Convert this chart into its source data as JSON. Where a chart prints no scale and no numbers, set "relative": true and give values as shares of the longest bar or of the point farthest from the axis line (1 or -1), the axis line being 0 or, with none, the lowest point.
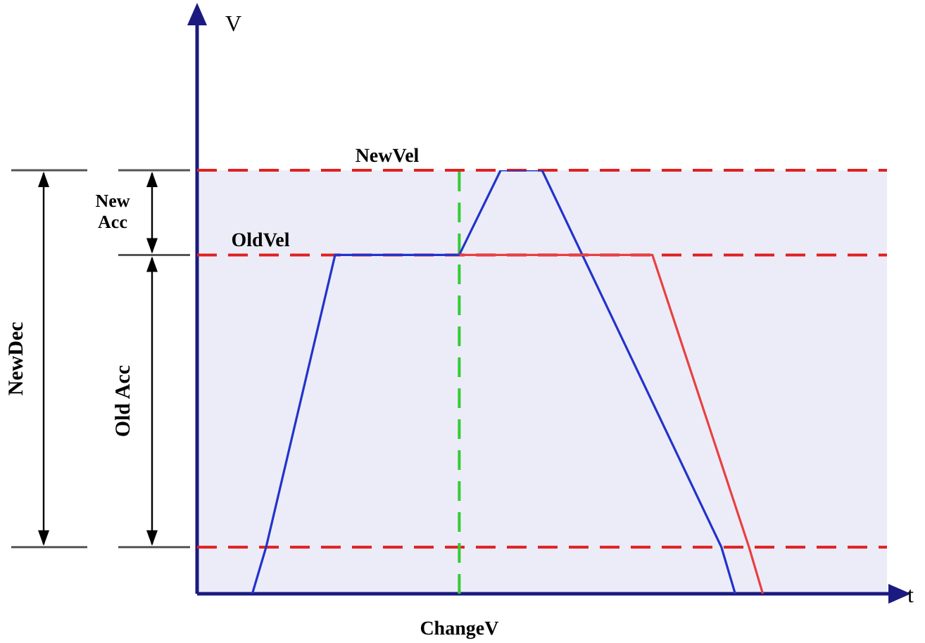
{
  "chart_data": {
    "type": "line",
    "relative": true,
    "categories": [
      null,
      null,
      null,
      null,
      null,
      null,
      null,
      null,
      null,
      null,
      null,
      null,
      null,
      null,
      null,
      null,
      null,
      null,
      null,
      null,
      null,
      null,
      null,
      null,
      null,
      null,
      null,
      null,
      null,
      null,
      null,
      null,
      null,
      null,
      null,
      null,
      null,
      null,
      null,
      null,
      null,
      null,
      null,
      null,
      null,
      null,
      null,
      null,
      null,
      null,
      null
    ],
    "marker": "none",
    "series": [
      {
        "color": "#2233cc",
        "values": [
          null,
          null,
          null,
          null,
          0,
          0.11,
          null,
          null,
          null,
          null,
          0.8,
          null,
          null,
          null,
          null,
          null,
          null,
          null,
          null,
          0.8,
          null,
          null,
          1,
          null,
          null,
          1,
          null,
          null,
          null,
          null,
          null,
          null,
          null,
          null,
          null,
          null,
          null,
          null,
          0.11,
          0,
          null,
          null,
          null,
          null,
          null,
          null,
          null,
          null,
          null,
          null,
          null
        ]
      },
      {
        "color": "#e84040",
        "values": [
          null,
          null,
          null,
          null,
          null,
          null,
          null,
          null,
          null,
          null,
          null,
          null,
          null,
          null,
          null,
          null,
          null,
          null,
          null,
          0.8,
          null,
          null,
          null,
          null,
          null,
          null,
          null,
          null,
          null,
          null,
          null,
          null,
          null,
          0.8,
          null,
          null,
          null,
          null,
          null,
          null,
          0.11,
          0,
          null,
          null,
          null,
          null,
          null,
          null,
          null,
          null,
          null
        ]
      }
    ],
    "ref_lines": [
      {
        "axis": "y",
        "value": 1,
        "label": "NewVel",
        "color": "#e02020",
        "line_style": "dashed"
      },
      {
        "axis": "y",
        "value": 0.8,
        "label": "OldVel",
        "color": "#e02020",
        "line_style": "dashed"
      },
      {
        "axis": "y",
        "value": 0.11,
        "label": null,
        "color": "#e02020",
        "line_style": "dashed"
      }
    ],
    "annotations": [
      "New Acc",
      "Old Acc",
      "NewDec",
      "ChangeV",
      "V",
      "t"
    ]
  }
}
